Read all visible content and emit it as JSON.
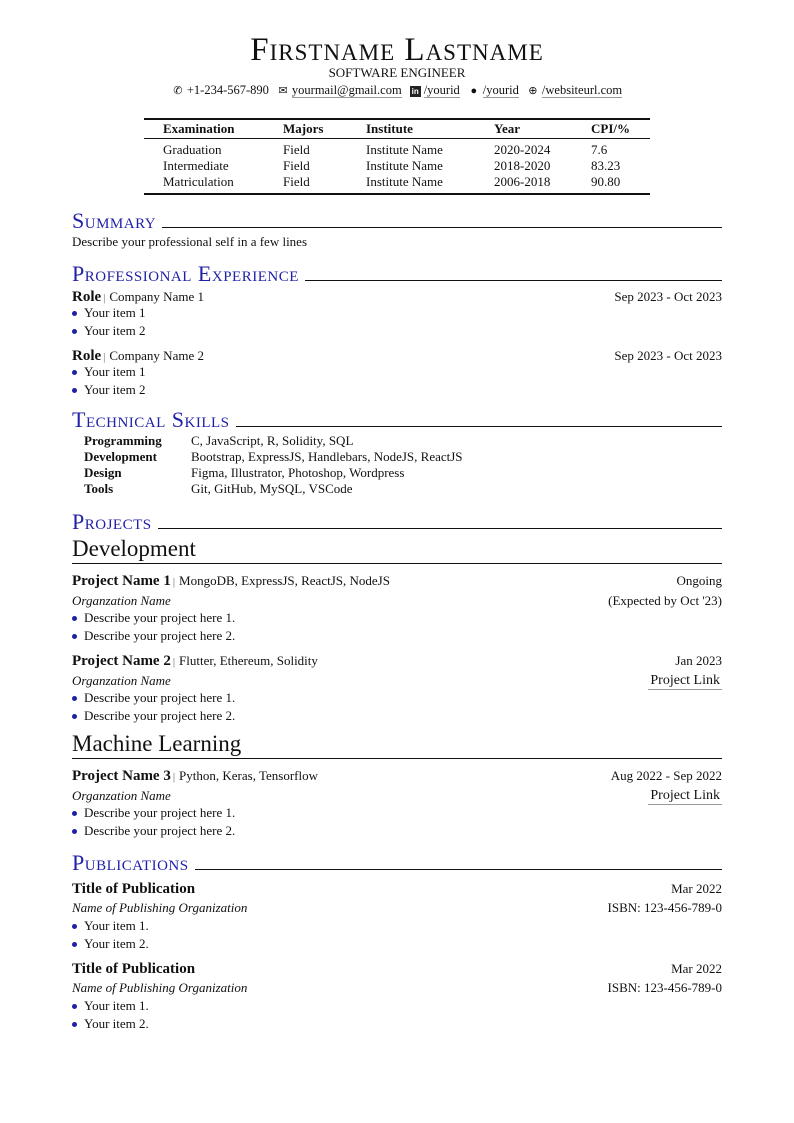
{
  "header": {
    "name": "Firstname Lastname",
    "title": "SOFTWARE ENGINEER",
    "contacts": [
      {
        "icon": "phone-icon",
        "text": "+1-234-567-890"
      },
      {
        "icon": "envelope-icon",
        "text": "yourmail@gmail.com"
      },
      {
        "icon": "linkedin-icon",
        "text": "/yourid"
      },
      {
        "icon": "github-icon",
        "text": "/yourid"
      },
      {
        "icon": "globe-icon",
        "text": "/websiteurl.com"
      }
    ]
  },
  "education": {
    "headers": [
      "Examination",
      "Majors",
      "Institute",
      "Year",
      "CPI/%"
    ],
    "rows": [
      [
        "Graduation",
        "Field",
        "Institute Name",
        "2020-2024",
        "7.6"
      ],
      [
        "Intermediate",
        "Field",
        "Institute Name",
        "2018-2020",
        "83.23"
      ],
      [
        "Matriculation",
        "Field",
        "Institute Name",
        "2006-2018",
        "90.80"
      ]
    ]
  },
  "summary": {
    "heading": "Summary",
    "text": "Describe your professional self in a few lines"
  },
  "experience": {
    "heading": "Professional Experience",
    "items": [
      {
        "role": "Role",
        "company": "Company Name 1",
        "date": "Sep 2023 - Oct 2023",
        "bullets": [
          "Your item 1",
          "Your item 2"
        ]
      },
      {
        "role": "Role",
        "company": "Company Name 2",
        "date": "Sep 2023 - Oct 2023",
        "bullets": [
          "Your item 1",
          "Your item 2"
        ]
      }
    ]
  },
  "skills": {
    "heading": "Technical Skills",
    "rows": [
      [
        "Programming",
        "C, JavaScript, R, Solidity, SQL"
      ],
      [
        "Development",
        "Bootstrap, ExpressJS, Handlebars, NodeJS, ReactJS"
      ],
      [
        "Design",
        "Figma, Illustrator, Photoshop, Wordpress"
      ],
      [
        "Tools",
        "Git, GitHub, MySQL, VSCode"
      ]
    ]
  },
  "projects": {
    "heading": "Projects",
    "groups": [
      {
        "title": "Development",
        "items": [
          {
            "name": "Project Name 1",
            "tech": "MongoDB, ExpressJS, ReactJS, NodeJS",
            "date": "Ongoing",
            "org": "Organzation Name",
            "right2": "(Expected by Oct '23)",
            "bullets": [
              "Describe your project here 1.",
              "Describe your project here 2."
            ]
          },
          {
            "name": "Project Name 2",
            "tech": "Flutter, Ethereum, Solidity",
            "date": "Jan 2023",
            "org": "Organzation Name",
            "right2": "Project Link",
            "bullets": [
              "Describe your project here 1.",
              "Describe your project here 2."
            ]
          }
        ]
      },
      {
        "title": "Machine Learning",
        "items": [
          {
            "name": "Project Name 3",
            "tech": "Python, Keras, Tensorflow",
            "date": "Aug 2022 - Sep 2022",
            "org": "Organzation Name",
            "right2": "Project Link",
            "bullets": [
              "Describe your project here 1.",
              "Describe your project here 2."
            ]
          }
        ]
      }
    ]
  },
  "publications": {
    "heading": "Publications",
    "items": [
      {
        "title": "Title of Publication",
        "date": "Mar 2022",
        "org": "Name of Publishing Organization",
        "isbn": "ISBN: 123-456-789-0",
        "bullets": [
          "Your item 1.",
          "Your item 2."
        ]
      },
      {
        "title": "Title of Publication",
        "date": "Mar 2022",
        "org": "Name of Publishing Organization",
        "isbn": "ISBN: 123-456-789-0",
        "bullets": [
          "Your item 1.",
          "Your item 2."
        ]
      }
    ]
  },
  "colors": {
    "accent": "#1f1fa8",
    "text": "#111111"
  }
}
